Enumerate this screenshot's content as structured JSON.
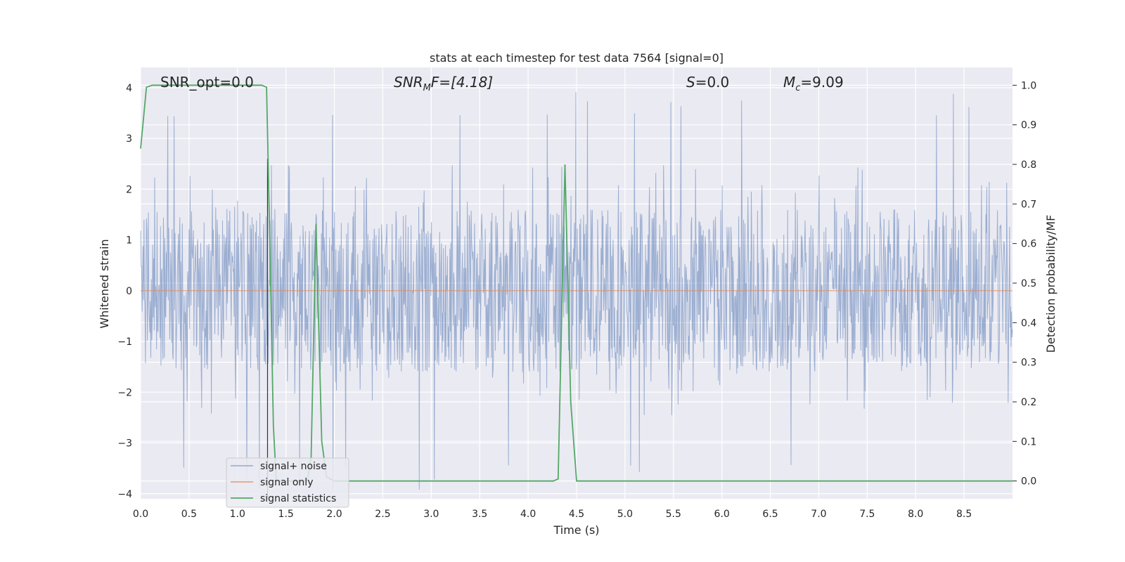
{
  "chart_data": {
    "type": "line",
    "title": "stats at each timestep for test data 7564 [signal=0]",
    "xlabel": "Time (s)",
    "ylabel_left": "Whitened strain",
    "ylabel_right": "Detection probability/MF",
    "xlim": [
      0.0,
      9.0
    ],
    "ylim_left": [
      -4.1,
      4.4
    ],
    "ylim_right": [
      -0.045,
      1.045
    ],
    "x_ticks": [
      "0.0",
      "0.5",
      "1.0",
      "1.5",
      "2.0",
      "2.5",
      "3.0",
      "3.5",
      "4.0",
      "4.5",
      "5.0",
      "5.5",
      "6.0",
      "6.5",
      "7.0",
      "7.5",
      "8.0",
      "8.5"
    ],
    "x_tick_values": [
      0.0,
      0.5,
      1.0,
      1.5,
      2.0,
      2.5,
      3.0,
      3.5,
      4.0,
      4.5,
      5.0,
      5.5,
      6.0,
      6.5,
      7.0,
      7.5,
      8.0,
      8.5
    ],
    "y_left_ticks": [
      "4",
      "3",
      "2",
      "1",
      "0",
      "−1",
      "−2",
      "−3",
      "−4"
    ],
    "y_left_tick_values": [
      4,
      3,
      2,
      1,
      0,
      -1,
      -2,
      -3,
      -4
    ],
    "y_right_ticks": [
      "1.0",
      "0.9",
      "0.8",
      "0.7",
      "0.6",
      "0.5",
      "0.4",
      "0.3",
      "0.2",
      "0.1",
      "0.0"
    ],
    "y_right_tick_values": [
      1.0,
      0.9,
      0.8,
      0.7,
      0.6,
      0.5,
      0.4,
      0.3,
      0.2,
      0.1,
      0.0
    ],
    "grid": true,
    "legend_position": "lower-left",
    "vertical_marker_x": 1.31,
    "series": [
      {
        "name": "signal+ noise",
        "axis": "left",
        "color": "#4c72b0",
        "noise_amplitude": 1.6,
        "peak_amplitude": 4.0
      },
      {
        "name": "signal only",
        "axis": "left",
        "color": "#dd8452",
        "x": [
          0.0,
          9.0
        ],
        "y": [
          0.0,
          0.0
        ]
      },
      {
        "name": "signal statistics",
        "axis": "right",
        "color": "#55a868",
        "x": [
          0.0,
          0.06,
          0.12,
          1.25,
          1.3,
          1.33,
          1.37,
          1.4,
          1.72,
          1.76,
          1.81,
          1.87,
          1.92,
          2.0,
          4.26,
          4.31,
          4.38,
          4.44,
          4.5,
          9.0
        ],
        "y": [
          0.84,
          0.995,
          1.0,
          1.0,
          0.995,
          0.65,
          0.14,
          0.0,
          0.0,
          0.06,
          0.65,
          0.1,
          0.01,
          0.0,
          0.0,
          0.005,
          0.8,
          0.2,
          0.0,
          0.0
        ]
      }
    ],
    "annotations": {
      "snr_opt": "SNR_opt=0.0",
      "snr_mf_label": "SNR",
      "snr_mf_sub": "M",
      "snr_mf_rest": "F=[4.18]",
      "s_label": "S",
      "s_rest": "=0.0",
      "mc_label": "M",
      "mc_sub": "c",
      "mc_rest": "=9.09"
    }
  }
}
